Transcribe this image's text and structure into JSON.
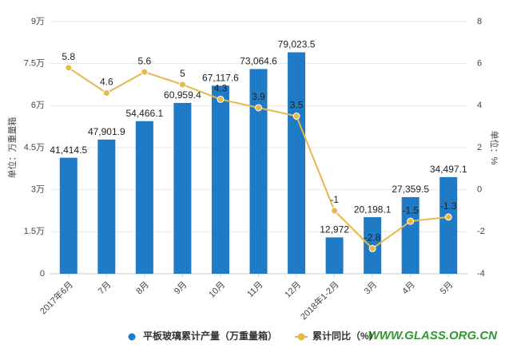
{
  "chart_data": {
    "type": "bar",
    "categories": [
      "2017年6月",
      "7月",
      "8月",
      "9月",
      "10月",
      "11月",
      "12月",
      "2018年1-2月",
      "3月",
      "4月",
      "5月"
    ],
    "series": [
      {
        "name": "平板玻璃累计产量（万重量箱）",
        "type": "bar",
        "color": "#1f7bc6",
        "values": [
          41414.5,
          47901.9,
          54466.1,
          60959.4,
          67117.6,
          73064.6,
          79023.5,
          12972,
          20198.1,
          27359.5,
          34497.1
        ],
        "value_labels": [
          "41,414.5",
          "47,901.9",
          "54,466.1",
          "60,959.4",
          "67,117.6",
          "73,064.6",
          "79,023.5",
          "12,972",
          "20,198.1",
          "27,359.5",
          "34,497.1"
        ]
      },
      {
        "name": "累计同比（%）",
        "type": "line",
        "color": "#e6b94a",
        "axis": "y2",
        "values": [
          5.8,
          4.6,
          5.6,
          5,
          4.3,
          3.9,
          3.5,
          -1,
          -2.8,
          -1.5,
          -1.3
        ]
      }
    ],
    "ylabel": "单位：万重量箱",
    "y2label": "单位：%",
    "ylim": [
      0,
      90000
    ],
    "yticks": [
      0,
      {
        "value": 15000,
        "label": "1.5万"
      },
      {
        "value": 30000,
        "label": "3万"
      },
      {
        "value": 45000,
        "label": "4.5万"
      },
      {
        "value": 60000,
        "label": "6万"
      },
      {
        "value": 75000,
        "label": "7.5万"
      },
      {
        "value": 90000,
        "label": "9万"
      }
    ],
    "y2lim": [
      -4,
      8
    ],
    "y2ticks": [
      -4,
      -2,
      0,
      2,
      4,
      6,
      8
    ],
    "grid": true,
    "legend": "bottom",
    "watermark": "WWW.GLASS.ORG.CN"
  }
}
